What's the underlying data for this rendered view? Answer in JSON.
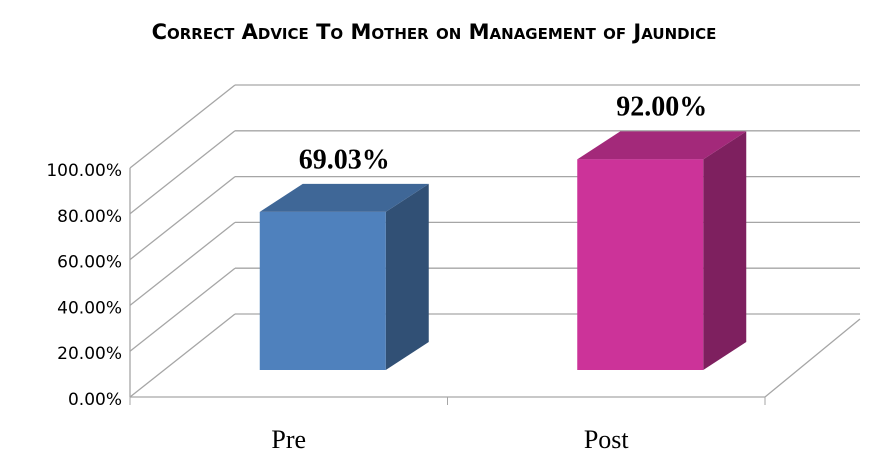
{
  "chart_data": {
    "type": "bar3d",
    "title": "Correct Advice To Mother on Management of Jaundice",
    "categories": [
      "Pre",
      "Post"
    ],
    "values": [
      69.03,
      92
    ],
    "value_labels": [
      "69.03%",
      "92.00%"
    ],
    "colors": [
      "#4f81bd",
      "#cc3399"
    ],
    "ylim": [
      0,
      100
    ],
    "yticks": [
      {
        "value": 0,
        "label": "0.00%"
      },
      {
        "value": 20,
        "label": "20.00%"
      },
      {
        "value": 40,
        "label": "40.00%"
      },
      {
        "value": 60,
        "label": "60.00%"
      },
      {
        "value": 80,
        "label": "80.00%"
      },
      {
        "value": 100,
        "label": "100.00%"
      }
    ],
    "grid": true
  }
}
